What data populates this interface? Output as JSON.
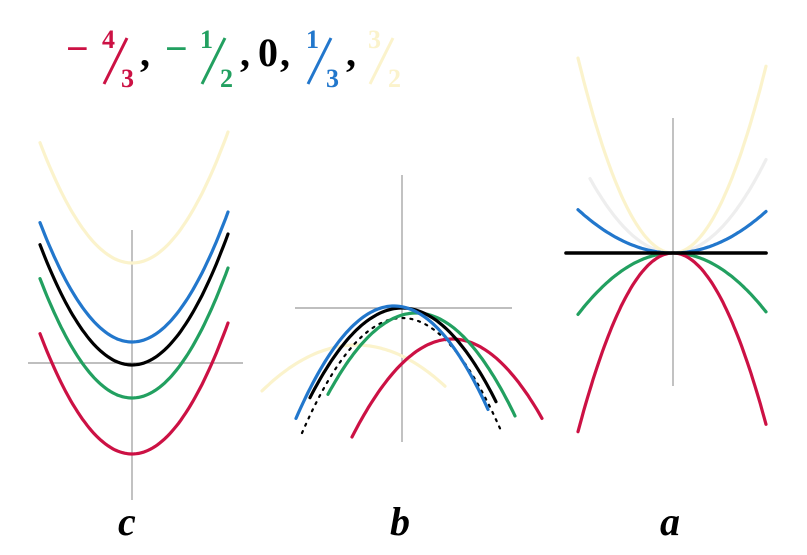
{
  "legend": {
    "items": [
      {
        "id": "m43",
        "sign": "−",
        "num": "4",
        "den": "3",
        "color": "#cc1144",
        "sep": ","
      },
      {
        "id": "m12",
        "sign": "−",
        "num": "1",
        "den": "2",
        "color": "#22a060",
        "sep": ","
      },
      {
        "id": "zero",
        "text": "0",
        "color": "#000000",
        "sep": ","
      },
      {
        "id": "p13",
        "num": "1",
        "den": "3",
        "color": "#2277cc",
        "sep": ","
      },
      {
        "id": "p32",
        "num": "3",
        "den": "2",
        "color": "#fbf3cc",
        "sep": ""
      }
    ],
    "comma_color": "#000000"
  },
  "panels": {
    "c": {
      "label": "c"
    },
    "b": {
      "label": "b"
    },
    "a": {
      "label": "a"
    }
  },
  "colors": {
    "red": "#cc1144",
    "green": "#22a060",
    "black": "#000000",
    "blue": "#2277cc",
    "cream": "#fbf3cc",
    "faint": "#eeeeee",
    "axis": "#999999"
  }
}
